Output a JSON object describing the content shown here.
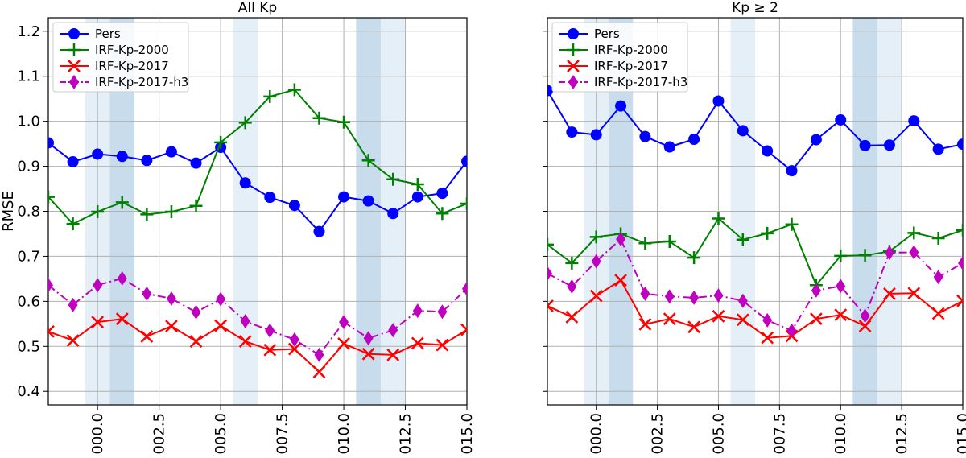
{
  "chart_data": [
    {
      "type": "line",
      "title": "All Kp",
      "ylabel": "RMSE",
      "xlabel": "",
      "x": [
        -2,
        -1,
        0,
        1,
        2,
        3,
        4,
        5,
        6,
        7,
        8,
        9,
        10,
        11,
        12,
        13,
        14,
        15
      ],
      "xlim": [
        -2,
        15
      ],
      "ylim": [
        0.37,
        1.23
      ],
      "xticks": [
        0.0,
        2.5,
        5.0,
        7.5,
        10.0,
        12.5,
        15.0
      ],
      "xtick_labels": [
        "000.0",
        "002.5",
        "005.0",
        "007.5",
        "010.0",
        "012.5",
        "015.0"
      ],
      "yticks": [
        0.4,
        0.5,
        0.6,
        0.7,
        0.8,
        0.9,
        1.0,
        1.1,
        1.2
      ],
      "ytick_labels": [
        "0.4",
        "0.5",
        "0.6",
        "0.7",
        "0.8",
        "0.9",
        "1.0",
        "1.1",
        "1.2"
      ],
      "grid": true,
      "legend_position": "top-left",
      "shaded_bands": [
        {
          "from": -0.5,
          "to": 0.5,
          "shade": "light"
        },
        {
          "from": 0.5,
          "to": 1.5,
          "shade": "dark"
        },
        {
          "from": 5.5,
          "to": 6.5,
          "shade": "light"
        },
        {
          "from": 10.5,
          "to": 11.5,
          "shade": "dark"
        },
        {
          "from": 11.5,
          "to": 12.5,
          "shade": "light"
        }
      ],
      "series": [
        {
          "name": "Pers",
          "color": "#0000ff",
          "marker": "circle",
          "linestyle": "solid",
          "values": [
            0.952,
            0.91,
            0.927,
            0.922,
            0.913,
            0.932,
            0.907,
            0.942,
            0.863,
            0.831,
            0.813,
            0.755,
            0.832,
            0.823,
            0.795,
            0.832,
            0.84,
            0.911
          ]
        },
        {
          "name": "IRF-Kp-2000",
          "color": "#008000",
          "marker": "plus",
          "linestyle": "solid",
          "values": [
            0.832,
            0.772,
            0.799,
            0.82,
            0.793,
            0.799,
            0.812,
            0.953,
            0.997,
            1.055,
            1.07,
            1.007,
            0.998,
            0.913,
            0.871,
            0.86,
            0.795,
            0.817
          ]
        },
        {
          "name": "IRF-Kp-2017",
          "color": "#ff0000",
          "marker": "x",
          "linestyle": "solid",
          "values": [
            0.533,
            0.513,
            0.554,
            0.561,
            0.522,
            0.545,
            0.511,
            0.546,
            0.511,
            0.492,
            0.494,
            0.443,
            0.506,
            0.483,
            0.481,
            0.507,
            0.503,
            0.537
          ]
        },
        {
          "name": "IRF-Kp-2017-h3",
          "color": "#bf00bf",
          "marker": "diamond",
          "linestyle": "dashdot",
          "values": [
            0.636,
            0.592,
            0.636,
            0.651,
            0.617,
            0.606,
            0.576,
            0.605,
            0.556,
            0.535,
            0.515,
            0.481,
            0.554,
            0.518,
            0.536,
            0.579,
            0.577,
            0.628
          ]
        }
      ]
    },
    {
      "type": "line",
      "title": "Kp  ≥ 2",
      "ylabel": "",
      "xlabel": "",
      "x": [
        -2,
        -1,
        0,
        1,
        2,
        3,
        4,
        5,
        6,
        7,
        8,
        9,
        10,
        11,
        12,
        13,
        14,
        15
      ],
      "xlim": [
        -2,
        15
      ],
      "ylim": [
        0.37,
        1.23
      ],
      "xticks": [
        0.0,
        2.5,
        5.0,
        7.5,
        10.0,
        12.5,
        15.0
      ],
      "xtick_labels": [
        "000.0",
        "002.5",
        "005.0",
        "007.5",
        "010.0",
        "012.5",
        "015.0"
      ],
      "yticks": [
        0.4,
        0.5,
        0.6,
        0.7,
        0.8,
        0.9,
        1.0,
        1.1,
        1.2
      ],
      "ytick_labels": [],
      "grid": true,
      "legend_position": "top-left",
      "shaded_bands": [
        {
          "from": -0.5,
          "to": 0.5,
          "shade": "light"
        },
        {
          "from": 0.5,
          "to": 1.5,
          "shade": "dark"
        },
        {
          "from": 5.5,
          "to": 6.5,
          "shade": "light"
        },
        {
          "from": 10.5,
          "to": 11.5,
          "shade": "dark"
        },
        {
          "from": 11.5,
          "to": 12.5,
          "shade": "light"
        }
      ],
      "series": [
        {
          "name": "Pers",
          "color": "#0000ff",
          "marker": "circle",
          "linestyle": "solid",
          "values": [
            1.068,
            0.976,
            0.97,
            1.034,
            0.966,
            0.943,
            0.96,
            1.045,
            0.979,
            0.934,
            0.89,
            0.959,
            1.003,
            0.946,
            0.947,
            1.001,
            0.938,
            0.949
          ]
        },
        {
          "name": "IRF-Kp-2000",
          "color": "#008000",
          "marker": "plus",
          "linestyle": "solid",
          "values": [
            0.726,
            0.685,
            0.743,
            0.75,
            0.729,
            0.733,
            0.697,
            0.784,
            0.737,
            0.751,
            0.771,
            0.636,
            0.701,
            0.702,
            0.711,
            0.752,
            0.74,
            0.758
          ]
        },
        {
          "name": "IRF-Kp-2017",
          "color": "#ff0000",
          "marker": "x",
          "linestyle": "solid",
          "values": [
            0.59,
            0.565,
            0.612,
            0.647,
            0.549,
            0.561,
            0.543,
            0.567,
            0.559,
            0.519,
            0.523,
            0.561,
            0.57,
            0.545,
            0.617,
            0.618,
            0.573,
            0.601
          ]
        },
        {
          "name": "IRF-Kp-2017-h3",
          "color": "#bf00bf",
          "marker": "diamond",
          "linestyle": "dashdot",
          "values": [
            0.662,
            0.633,
            0.689,
            0.738,
            0.617,
            0.611,
            0.608,
            0.613,
            0.601,
            0.558,
            0.535,
            0.624,
            0.634,
            0.568,
            0.708,
            0.709,
            0.654,
            0.685
          ]
        }
      ]
    }
  ],
  "colors": {
    "band_light": "#e5eff7",
    "band_dark": "#c8dcec",
    "grid": "#b0b0b0"
  }
}
